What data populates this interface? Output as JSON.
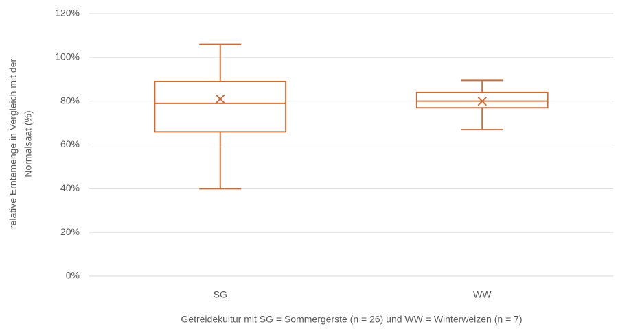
{
  "chart_data": {
    "type": "box",
    "ylabel": [
      "relative Erntemenge in Vergleich mit der",
      "Normalsaat (%)"
    ],
    "xlabel": "Getreidekultur mit SG = Sommergerste (n = 26) und WW = Winterweizen (n = 7)",
    "categories": [
      "SG",
      "WW"
    ],
    "boxes": [
      {
        "min": 40,
        "q1": 66,
        "median": 79,
        "q3": 89,
        "max": 106,
        "mean": 81
      },
      {
        "min": 67,
        "q1": 77,
        "median": 80,
        "q3": 84,
        "max": 89.5,
        "mean": 80
      }
    ],
    "color": "#c5703c",
    "ylim": [
      0,
      120
    ],
    "yticks": [
      {
        "value": 0,
        "label": "0%"
      },
      {
        "value": 20,
        "label": "20%"
      },
      {
        "value": 40,
        "label": "40%"
      },
      {
        "value": 60,
        "label": "60%"
      },
      {
        "value": 80,
        "label": "80%"
      },
      {
        "value": 100,
        "label": "100%"
      },
      {
        "value": 120,
        "label": "120%"
      }
    ],
    "grid": true
  }
}
